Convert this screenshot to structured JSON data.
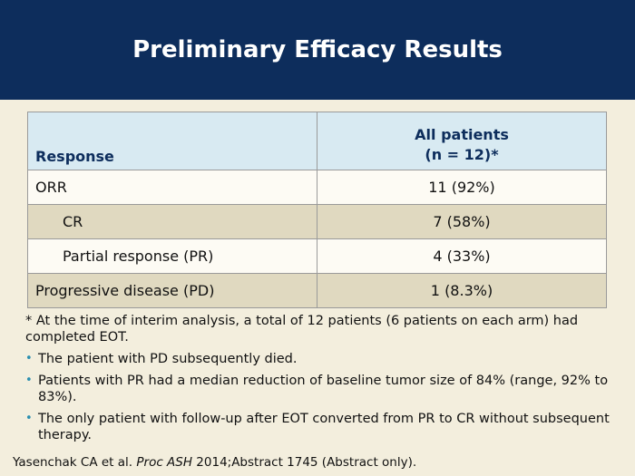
{
  "header": {
    "title": "Preliminary Efficacy Results"
  },
  "table": {
    "col_response": "Response",
    "col_all_line1": "All patients",
    "col_all_line2": "(n = 12)*",
    "rows": [
      {
        "label": "ORR",
        "value": "11 (92%)"
      },
      {
        "label": "CR",
        "value": "7 (58%)"
      },
      {
        "label": "Partial response (PR)",
        "value": "4 (33%)"
      },
      {
        "label": "Progressive disease (PD)",
        "value": "1 (8.3%)"
      }
    ]
  },
  "footnote": "* At the time of interim analysis, a total of 12 patients (6 patients on each arm) had completed EOT.",
  "bullets": [
    "The patient with PD subsequently died.",
    "Patients with PR had a median reduction of baseline tumor size of 84% (range, 92% to 83%).",
    "The only patient with follow-up after EOT converted from PR to CR without subsequent therapy."
  ],
  "citation": {
    "authors": "Yasenchak CA et al.",
    "journal": "Proc ASH",
    "rest": "2014;Abstract 1745 (Abstract only)."
  }
}
